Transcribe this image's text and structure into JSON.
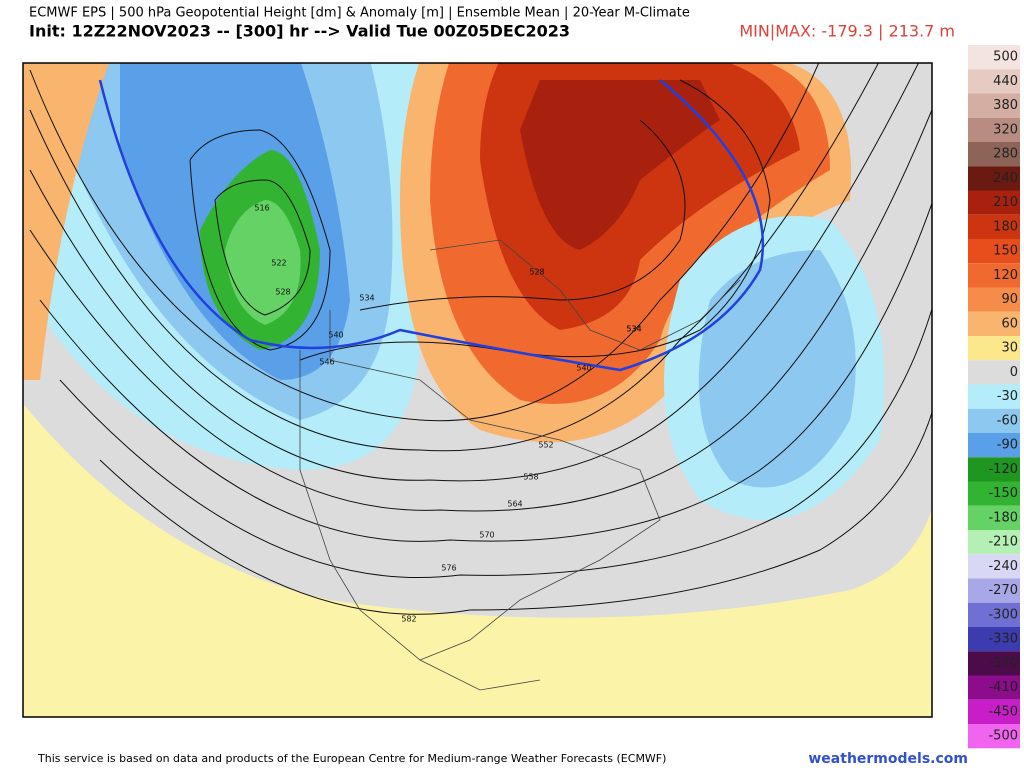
{
  "header": {
    "title": "ECMWF EPS | 500 hPa Geopotential Height [dm] & Anomaly [m] | Ensemble Mean | 20-Year M-Climate",
    "init": "Init: 12Z22NOV2023 -- [300] hr --> Valid Tue 00Z05DEC2023",
    "minmax": "MIN|MAX: -179.3 | 213.7 m"
  },
  "colorbar": [
    {
      "label": "500",
      "color": "#f4e4e0"
    },
    {
      "label": "440",
      "color": "#e6cbc2"
    },
    {
      "label": "380",
      "color": "#d4aea2"
    },
    {
      "label": "320",
      "color": "#b88c80"
    },
    {
      "label": "280",
      "color": "#8e6458"
    },
    {
      "label": "240",
      "color": "#6a1a10"
    },
    {
      "label": "210",
      "color": "#a8200e"
    },
    {
      "label": "180",
      "color": "#cc3510"
    },
    {
      "label": "150",
      "color": "#e84e1c"
    },
    {
      "label": "120",
      "color": "#f06a30"
    },
    {
      "label": "90",
      "color": "#f58c4a"
    },
    {
      "label": "60",
      "color": "#f9b46e"
    },
    {
      "label": "30",
      "color": "#fbe88c"
    },
    {
      "label": "0",
      "color": "#dcdcdc"
    },
    {
      "label": "-30",
      "color": "#b4ecfa"
    },
    {
      "label": "-60",
      "color": "#8cc8f0"
    },
    {
      "label": "-90",
      "color": "#5aa0e8"
    },
    {
      "label": "-120",
      "color": "#1e9620"
    },
    {
      "label": "-150",
      "color": "#32b432"
    },
    {
      "label": "-180",
      "color": "#64d264"
    },
    {
      "label": "-210",
      "color": "#b4f0b4"
    },
    {
      "label": "-240",
      "color": "#d8d8f4"
    },
    {
      "label": "-270",
      "color": "#a8a8e8"
    },
    {
      "label": "-300",
      "color": "#7070d4"
    },
    {
      "label": "-330",
      "color": "#3c3cb0"
    },
    {
      "label": "-370",
      "color": "#4c0c4c"
    },
    {
      "label": "-410",
      "color": "#8c0c8c"
    },
    {
      "label": "-450",
      "color": "#c81ec8"
    },
    {
      "label": "-500",
      "color": "#f064f0"
    }
  ],
  "contour_labels": [
    "516",
    "522",
    "528",
    "534",
    "540",
    "546",
    "528",
    "534",
    "540",
    "534",
    "552",
    "558",
    "564",
    "570",
    "576",
    "582"
  ],
  "footer": {
    "notice": "This service is based on data and products of the European Centre for Medium-range Weather Forecasts (ECMWF)",
    "site": "weathermodels.com"
  }
}
